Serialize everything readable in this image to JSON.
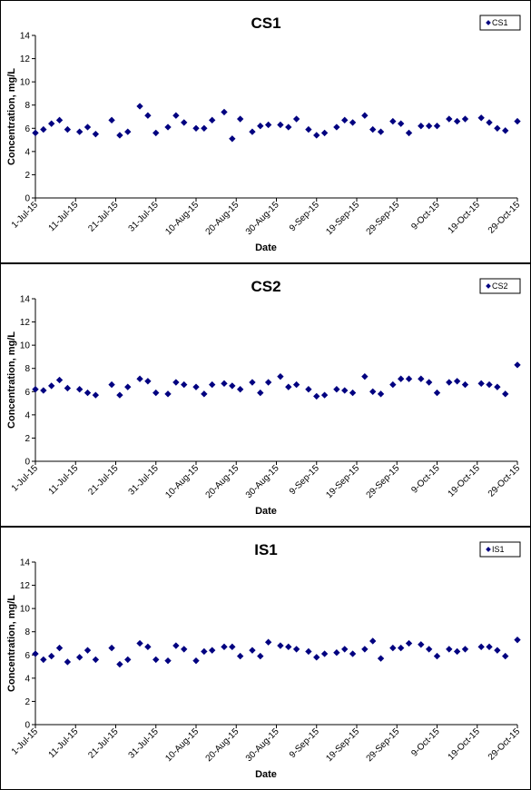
{
  "chart_data": [
    {
      "type": "scatter",
      "title": "CS1",
      "xlabel": "Date",
      "ylabel": "Concentration, mg/L",
      "ylim": [
        0,
        14
      ],
      "yticks": [
        0,
        2,
        4,
        6,
        8,
        10,
        12,
        14
      ],
      "xlim": [
        "1-Jul-15",
        "29-Oct-15"
      ],
      "xticks": [
        "1-Jul-15",
        "11-Jul-15",
        "21-Jul-15",
        "31-Jul-15",
        "10-Aug-15",
        "20-Aug-15",
        "30-Aug-15",
        "9-Sep-15",
        "19-Sep-15",
        "29-Sep-15",
        "9-Oct-15",
        "19-Oct-15",
        "29-Oct-15"
      ],
      "grid": false,
      "legend": "top-right",
      "color": "#000080",
      "series": [
        {
          "name": "CS1",
          "points": [
            [
              "1-Jul-15",
              5.6
            ],
            [
              "3-Jul-15",
              5.9
            ],
            [
              "5-Jul-15",
              6.4
            ],
            [
              "7-Jul-15",
              6.7
            ],
            [
              "9-Jul-15",
              5.9
            ],
            [
              "12-Jul-15",
              5.7
            ],
            [
              "14-Jul-15",
              6.1
            ],
            [
              "16-Jul-15",
              5.5
            ],
            [
              "20-Jul-15",
              6.7
            ],
            [
              "22-Jul-15",
              5.4
            ],
            [
              "24-Jul-15",
              5.7
            ],
            [
              "27-Jul-15",
              7.9
            ],
            [
              "29-Jul-15",
              7.1
            ],
            [
              "31-Jul-15",
              5.6
            ],
            [
              "3-Aug-15",
              6.1
            ],
            [
              "5-Aug-15",
              7.1
            ],
            [
              "7-Aug-15",
              6.5
            ],
            [
              "10-Aug-15",
              6.0
            ],
            [
              "12-Aug-15",
              6.0
            ],
            [
              "14-Aug-15",
              6.7
            ],
            [
              "17-Aug-15",
              7.4
            ],
            [
              "19-Aug-15",
              5.1
            ],
            [
              "21-Aug-15",
              6.8
            ],
            [
              "24-Aug-15",
              5.7
            ],
            [
              "26-Aug-15",
              6.2
            ],
            [
              "28-Aug-15",
              6.3
            ],
            [
              "31-Aug-15",
              6.3
            ],
            [
              "2-Sep-15",
              6.1
            ],
            [
              "4-Sep-15",
              6.8
            ],
            [
              "7-Sep-15",
              5.9
            ],
            [
              "9-Sep-15",
              5.4
            ],
            [
              "11-Sep-15",
              5.6
            ],
            [
              "14-Sep-15",
              6.1
            ],
            [
              "16-Sep-15",
              6.7
            ],
            [
              "18-Sep-15",
              6.5
            ],
            [
              "21-Sep-15",
              7.1
            ],
            [
              "23-Sep-15",
              5.9
            ],
            [
              "25-Sep-15",
              5.7
            ],
            [
              "28-Sep-15",
              6.6
            ],
            [
              "30-Sep-15",
              6.4
            ],
            [
              "2-Oct-15",
              5.6
            ],
            [
              "5-Oct-15",
              6.2
            ],
            [
              "7-Oct-15",
              6.2
            ],
            [
              "9-Oct-15",
              6.2
            ],
            [
              "12-Oct-15",
              6.8
            ],
            [
              "14-Oct-15",
              6.6
            ],
            [
              "16-Oct-15",
              6.8
            ],
            [
              "20-Oct-15",
              6.9
            ],
            [
              "22-Oct-15",
              6.5
            ],
            [
              "24-Oct-15",
              6.0
            ],
            [
              "26-Oct-15",
              5.8
            ],
            [
              "29-Oct-15",
              6.6
            ]
          ]
        }
      ]
    },
    {
      "type": "scatter",
      "title": "CS2",
      "xlabel": "Date",
      "ylabel": "Concentration, mg/L",
      "ylim": [
        0,
        14
      ],
      "yticks": [
        0,
        2,
        4,
        6,
        8,
        10,
        12,
        14
      ],
      "xlim": [
        "1-Jul-15",
        "29-Oct-15"
      ],
      "xticks": [
        "1-Jul-15",
        "11-Jul-15",
        "21-Jul-15",
        "31-Jul-15",
        "10-Aug-15",
        "20-Aug-15",
        "30-Aug-15",
        "9-Sep-15",
        "19-Sep-15",
        "29-Sep-15",
        "9-Oct-15",
        "19-Oct-15",
        "29-Oct-15"
      ],
      "grid": false,
      "legend": "top-right",
      "color": "#000080",
      "series": [
        {
          "name": "CS2",
          "points": [
            [
              "1-Jul-15",
              6.2
            ],
            [
              "3-Jul-15",
              6.1
            ],
            [
              "5-Jul-15",
              6.5
            ],
            [
              "7-Jul-15",
              7.0
            ],
            [
              "9-Jul-15",
              6.3
            ],
            [
              "12-Jul-15",
              6.2
            ],
            [
              "14-Jul-15",
              5.9
            ],
            [
              "16-Jul-15",
              5.7
            ],
            [
              "20-Jul-15",
              6.6
            ],
            [
              "22-Jul-15",
              5.7
            ],
            [
              "24-Jul-15",
              6.4
            ],
            [
              "27-Jul-15",
              7.1
            ],
            [
              "29-Jul-15",
              6.9
            ],
            [
              "31-Jul-15",
              5.9
            ],
            [
              "3-Aug-15",
              5.8
            ],
            [
              "5-Aug-15",
              6.8
            ],
            [
              "7-Aug-15",
              6.6
            ],
            [
              "10-Aug-15",
              6.4
            ],
            [
              "12-Aug-15",
              5.8
            ],
            [
              "14-Aug-15",
              6.6
            ],
            [
              "17-Aug-15",
              6.7
            ],
            [
              "19-Aug-15",
              6.5
            ],
            [
              "21-Aug-15",
              6.2
            ],
            [
              "24-Aug-15",
              6.8
            ],
            [
              "26-Aug-15",
              5.9
            ],
            [
              "28-Aug-15",
              6.8
            ],
            [
              "31-Aug-15",
              7.3
            ],
            [
              "2-Sep-15",
              6.4
            ],
            [
              "4-Sep-15",
              6.6
            ],
            [
              "7-Sep-15",
              6.2
            ],
            [
              "9-Sep-15",
              5.6
            ],
            [
              "11-Sep-15",
              5.7
            ],
            [
              "14-Sep-15",
              6.2
            ],
            [
              "16-Sep-15",
              6.1
            ],
            [
              "18-Sep-15",
              5.9
            ],
            [
              "21-Sep-15",
              7.3
            ],
            [
              "23-Sep-15",
              6.0
            ],
            [
              "25-Sep-15",
              5.8
            ],
            [
              "28-Sep-15",
              6.6
            ],
            [
              "30-Sep-15",
              7.1
            ],
            [
              "2-Oct-15",
              7.1
            ],
            [
              "5-Oct-15",
              7.1
            ],
            [
              "7-Oct-15",
              6.8
            ],
            [
              "9-Oct-15",
              5.9
            ],
            [
              "12-Oct-15",
              6.8
            ],
            [
              "14-Oct-15",
              6.9
            ],
            [
              "16-Oct-15",
              6.6
            ],
            [
              "20-Oct-15",
              6.7
            ],
            [
              "22-Oct-15",
              6.6
            ],
            [
              "24-Oct-15",
              6.4
            ],
            [
              "26-Oct-15",
              5.8
            ],
            [
              "29-Oct-15",
              8.3
            ]
          ]
        }
      ]
    },
    {
      "type": "scatter",
      "title": "IS1",
      "xlabel": "Date",
      "ylabel": "Concentration, mg/L",
      "ylim": [
        0,
        14
      ],
      "yticks": [
        0,
        2,
        4,
        6,
        8,
        10,
        12,
        14
      ],
      "xlim": [
        "1-Jul-15",
        "29-Oct-15"
      ],
      "xticks": [
        "1-Jul-15",
        "11-Jul-15",
        "21-Jul-15",
        "31-Jul-15",
        "10-Aug-15",
        "20-Aug-15",
        "30-Aug-15",
        "9-Sep-15",
        "19-Sep-15",
        "29-Sep-15",
        "9-Oct-15",
        "19-Oct-15",
        "29-Oct-15"
      ],
      "grid": false,
      "legend": "top-right",
      "color": "#000080",
      "series": [
        {
          "name": "IS1",
          "points": [
            [
              "1-Jul-15",
              6.1
            ],
            [
              "3-Jul-15",
              5.6
            ],
            [
              "5-Jul-15",
              5.9
            ],
            [
              "7-Jul-15",
              6.6
            ],
            [
              "9-Jul-15",
              5.4
            ],
            [
              "12-Jul-15",
              5.8
            ],
            [
              "14-Jul-15",
              6.4
            ],
            [
              "16-Jul-15",
              5.6
            ],
            [
              "20-Jul-15",
              6.6
            ],
            [
              "22-Jul-15",
              5.2
            ],
            [
              "24-Jul-15",
              5.6
            ],
            [
              "27-Jul-15",
              7.0
            ],
            [
              "29-Jul-15",
              6.7
            ],
            [
              "31-Jul-15",
              5.6
            ],
            [
              "3-Aug-15",
              5.5
            ],
            [
              "5-Aug-15",
              6.8
            ],
            [
              "7-Aug-15",
              6.5
            ],
            [
              "10-Aug-15",
              5.5
            ],
            [
              "12-Aug-15",
              6.3
            ],
            [
              "14-Aug-15",
              6.4
            ],
            [
              "17-Aug-15",
              6.7
            ],
            [
              "19-Aug-15",
              6.7
            ],
            [
              "21-Aug-15",
              5.9
            ],
            [
              "24-Aug-15",
              6.4
            ],
            [
              "26-Aug-15",
              5.9
            ],
            [
              "28-Aug-15",
              7.1
            ],
            [
              "31-Aug-15",
              6.8
            ],
            [
              "2-Sep-15",
              6.7
            ],
            [
              "4-Sep-15",
              6.5
            ],
            [
              "7-Sep-15",
              6.3
            ],
            [
              "9-Sep-15",
              5.8
            ],
            [
              "11-Sep-15",
              6.1
            ],
            [
              "14-Sep-15",
              6.2
            ],
            [
              "16-Sep-15",
              6.5
            ],
            [
              "18-Sep-15",
              6.1
            ],
            [
              "21-Sep-15",
              6.5
            ],
            [
              "23-Sep-15",
              7.2
            ],
            [
              "25-Sep-15",
              5.7
            ],
            [
              "28-Sep-15",
              6.6
            ],
            [
              "30-Sep-15",
              6.6
            ],
            [
              "2-Oct-15",
              7.0
            ],
            [
              "5-Oct-15",
              6.9
            ],
            [
              "7-Oct-15",
              6.5
            ],
            [
              "9-Oct-15",
              5.9
            ],
            [
              "12-Oct-15",
              6.5
            ],
            [
              "14-Oct-15",
              6.3
            ],
            [
              "16-Oct-15",
              6.5
            ],
            [
              "20-Oct-15",
              6.7
            ],
            [
              "22-Oct-15",
              6.7
            ],
            [
              "24-Oct-15",
              6.4
            ],
            [
              "26-Oct-15",
              5.9
            ],
            [
              "29-Oct-15",
              7.3
            ]
          ]
        }
      ]
    }
  ]
}
